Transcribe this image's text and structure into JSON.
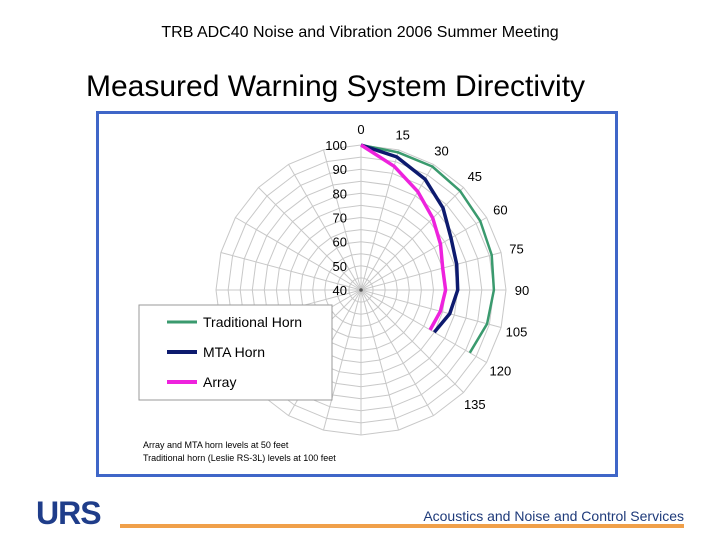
{
  "header": {
    "meeting": "TRB ADC40 Noise and Vibration 2006 Summer Meeting"
  },
  "slide": {
    "title": "Measured Warning System Directivity"
  },
  "footer": {
    "brand": "URS",
    "tagline": "Acoustics and Noise and Control Services"
  },
  "colors": {
    "frame": "#3f66c8",
    "accent_rule": "#f0a04a",
    "grid": "#c8c8c8"
  },
  "chart_data": {
    "type": "polar-line",
    "angle_unit": "degrees",
    "angle_ticks": [
      0,
      15,
      30,
      45,
      60,
      75,
      90,
      105,
      120,
      135
    ],
    "radial_range": [
      40,
      100
    ],
    "radial_ticks": [
      40,
      50,
      60,
      70,
      80,
      90,
      100
    ],
    "series": [
      {
        "name": "Traditional Horn",
        "color": "#3a9a6e",
        "angles": [
          0,
          15,
          30,
          45,
          60,
          75,
          90,
          105,
          120
        ],
        "values": [
          100,
          99,
          99,
          98,
          97,
          96,
          95,
          94,
          92
        ]
      },
      {
        "name": "MTA Horn",
        "color": "#0d1a6e",
        "angles": [
          0,
          15,
          30,
          45,
          60,
          75,
          90,
          105,
          120
        ],
        "values": [
          100,
          97,
          93,
          88,
          83,
          81,
          80,
          78,
          75
        ]
      },
      {
        "name": "Array",
        "color": "#ee22dd",
        "angles": [
          0,
          15,
          30,
          45,
          60,
          75,
          90,
          105,
          120
        ],
        "values": [
          100,
          93,
          87,
          82,
          78,
          75,
          75,
          74,
          73
        ]
      }
    ],
    "notes": [
      "Array and MTA horn levels at 50 feet",
      "Traditional horn (Leslie RS-3L) levels at 100 feet"
    ]
  }
}
